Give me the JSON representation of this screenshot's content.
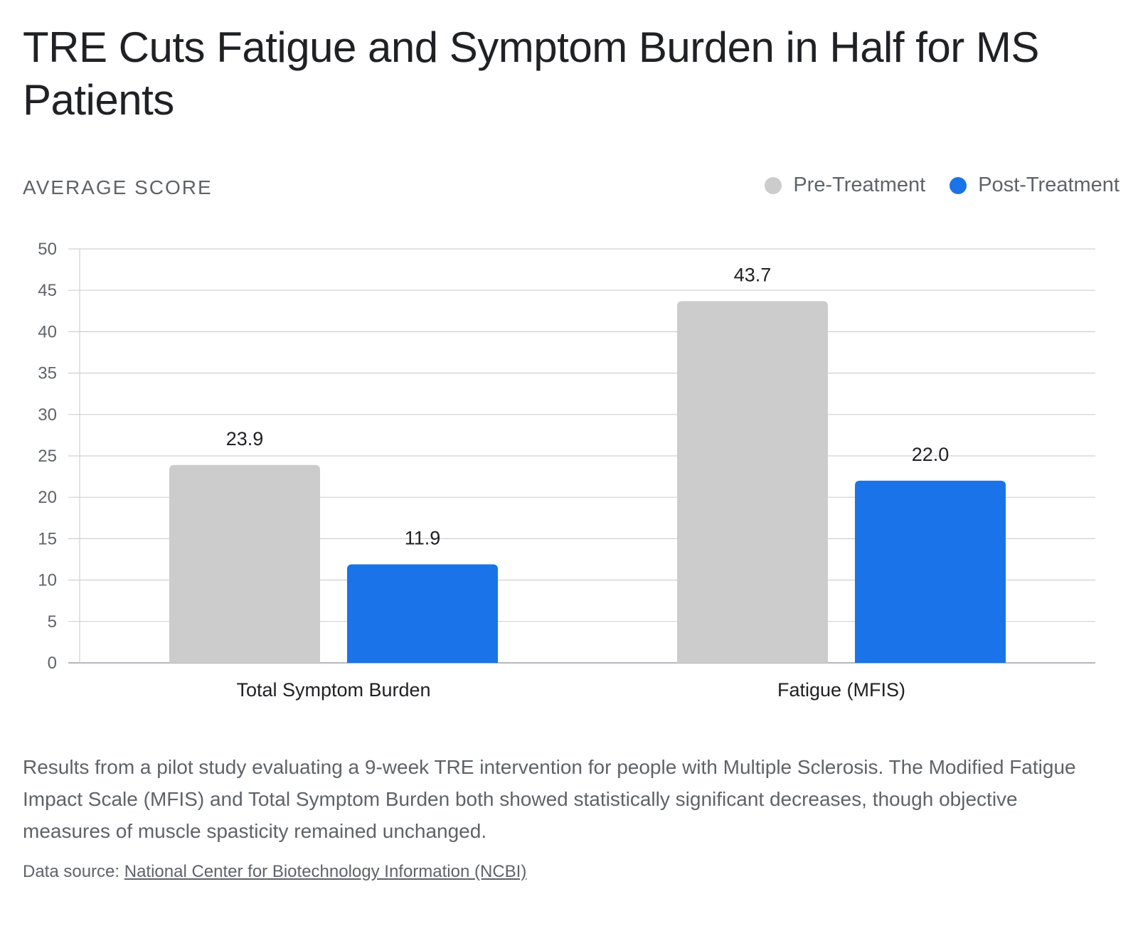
{
  "title": "TRE Cuts Fatigue and Symptom Burden in Half for MS Patients",
  "y_axis_title": "AVERAGE SCORE",
  "legend": [
    {
      "label": "Pre-Treatment",
      "color": "#cccccc"
    },
    {
      "label": "Post-Treatment",
      "color": "#1a73e8"
    }
  ],
  "chart_data": {
    "type": "bar",
    "title": "TRE Cuts Fatigue and Symptom Burden in Half for MS Patients",
    "ylabel": "AVERAGE SCORE",
    "xlabel": "",
    "categories": [
      "Total Symptom Burden",
      "Fatigue (MFIS)"
    ],
    "series": [
      {
        "name": "Pre-Treatment",
        "values": [
          23.9,
          43.7
        ],
        "labels": [
          "23.9",
          "43.7"
        ],
        "color": "#cccccc"
      },
      {
        "name": "Post-Treatment",
        "values": [
          11.9,
          22.0
        ],
        "labels": [
          "11.9",
          "22.0"
        ],
        "color": "#1a73e8"
      }
    ],
    "ylim": [
      0,
      50
    ],
    "yticks": [
      0,
      5,
      10,
      15,
      20,
      25,
      30,
      35,
      40,
      45,
      50
    ],
    "grid": true,
    "legend_position": "top-right",
    "data_labels": true
  },
  "description": "Results from a pilot study evaluating a 9-week TRE intervention for people with Multiple Sclerosis. The Modified Fatigue Impact Scale (MFIS) and Total Symptom Burden both showed statistically significant decreases, though objective measures of muscle spasticity remained unchanged.",
  "source": {
    "prefix": "Data source: ",
    "link_text": "National Center for Biotechnology Information (NCBI)"
  }
}
